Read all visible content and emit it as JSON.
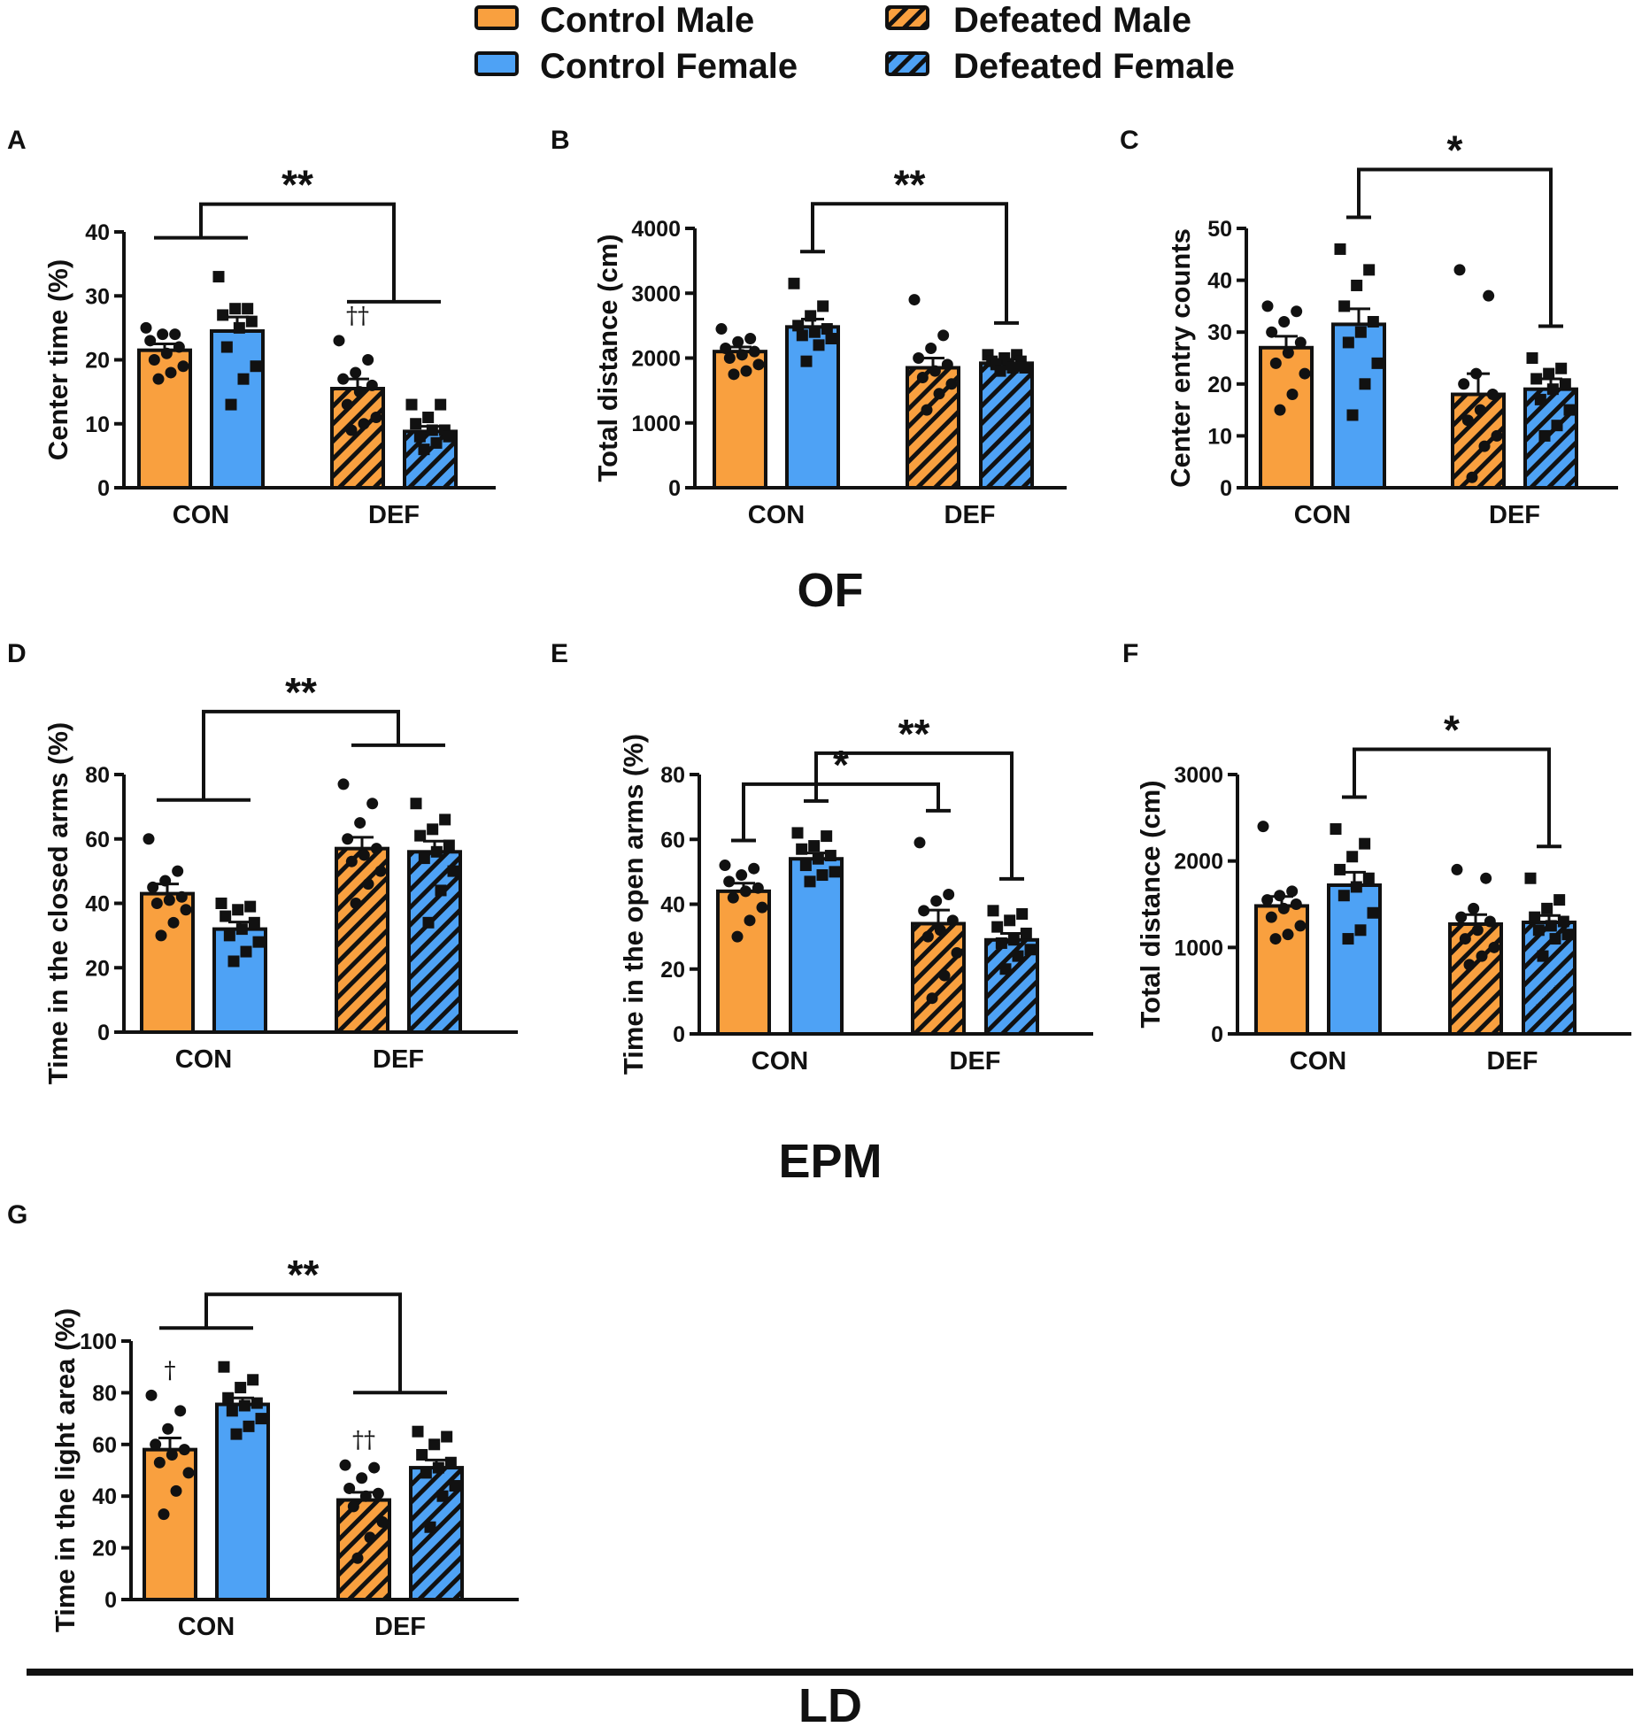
{
  "colors": {
    "control_male": "#F9A03F",
    "control_female": "#4EA2F5",
    "outline": "#111111",
    "background": "#ffffff"
  },
  "legend": {
    "control_male": "Control Male",
    "control_female": "Control Female",
    "defeated_male": "Defeated Male",
    "defeated_female": "Defeated Female"
  },
  "sections": {
    "of": "OF",
    "epm": "EPM",
    "ld": "LD"
  },
  "chart_data": [
    {
      "type": "bar",
      "panel": "A",
      "section": "OF",
      "title": "",
      "xlabel": "",
      "ylabel": "Center time (%)",
      "ylim": [
        0,
        40
      ],
      "yticks": [
        0,
        10,
        20,
        30,
        40
      ],
      "categories": [
        "CON",
        "DEF"
      ],
      "series": [
        {
          "name": "Control Male",
          "group": "CON",
          "mean": 21.5,
          "sem": 1.0,
          "points": [
            25,
            24,
            24,
            23,
            22,
            21,
            20,
            19,
            18,
            17
          ],
          "marker": "circle"
        },
        {
          "name": "Control Female",
          "group": "CON",
          "mean": 24.5,
          "sem": 2.2,
          "points": [
            33,
            28,
            28,
            27,
            26,
            25,
            22,
            19,
            17,
            13
          ],
          "marker": "square"
        },
        {
          "name": "Defeated Male",
          "group": "DEF",
          "mean": 15.5,
          "sem": 1.5,
          "points": [
            23,
            20,
            18,
            17,
            16,
            15,
            13,
            11,
            10,
            9
          ],
          "marker": "circle",
          "dagger": "††"
        },
        {
          "name": "Defeated Female",
          "group": "DEF",
          "mean": 8.8,
          "sem": 0.8,
          "points": [
            13,
            13,
            11,
            10,
            9,
            9,
            8,
            8,
            7,
            6
          ],
          "marker": "square"
        }
      ],
      "significance": [
        {
          "label": "**",
          "comparison": "CON vs DEF"
        }
      ]
    },
    {
      "type": "bar",
      "panel": "B",
      "section": "OF",
      "title": "",
      "xlabel": "",
      "ylabel": "Total distance (cm)",
      "ylim": [
        0,
        4000
      ],
      "yticks": [
        0,
        1000,
        2000,
        3000,
        4000
      ],
      "categories": [
        "CON",
        "DEF"
      ],
      "series": [
        {
          "name": "Control Male",
          "group": "CON",
          "mean": 2100,
          "sem": 70,
          "points": [
            2450,
            2300,
            2250,
            2150,
            2100,
            2050,
            2000,
            1900,
            1800,
            1750
          ],
          "marker": "circle"
        },
        {
          "name": "Control Female",
          "group": "CON",
          "mean": 2480,
          "sem": 120,
          "points": [
            3150,
            2800,
            2650,
            2500,
            2450,
            2400,
            2350,
            2300,
            2200,
            1950
          ],
          "marker": "square"
        },
        {
          "name": "Defeated Male",
          "group": "DEF",
          "mean": 1850,
          "sem": 150,
          "points": [
            2900,
            2350,
            2150,
            2000,
            1900,
            1800,
            1700,
            1600,
            1450,
            1200
          ],
          "marker": "circle"
        },
        {
          "name": "Defeated Female",
          "group": "DEF",
          "mean": 1920,
          "sem": 60,
          "points": [
            2050,
            2050,
            2000,
            1950,
            1950,
            1900,
            1900,
            1850,
            1850,
            1800
          ],
          "marker": "square"
        }
      ],
      "significance": [
        {
          "label": "**",
          "comparison": "Control Female vs Defeated Female"
        }
      ]
    },
    {
      "type": "bar",
      "panel": "C",
      "section": "OF",
      "title": "",
      "xlabel": "",
      "ylabel": "Center entry counts",
      "ylim": [
        0,
        50
      ],
      "yticks": [
        0,
        10,
        20,
        30,
        40,
        50
      ],
      "categories": [
        "CON",
        "DEF"
      ],
      "series": [
        {
          "name": "Control Male",
          "group": "CON",
          "mean": 27,
          "sem": 2.2,
          "points": [
            35,
            34,
            32,
            30,
            28,
            26,
            24,
            22,
            18,
            15
          ],
          "marker": "circle"
        },
        {
          "name": "Control Female",
          "group": "CON",
          "mean": 31.5,
          "sem": 3.0,
          "points": [
            46,
            42,
            39,
            35,
            32,
            30,
            28,
            24,
            20,
            14
          ],
          "marker": "square"
        },
        {
          "name": "Defeated Male",
          "group": "DEF",
          "mean": 18,
          "sem": 4.0,
          "points": [
            42,
            37,
            22,
            20,
            18,
            15,
            13,
            10,
            8,
            2
          ],
          "marker": "circle"
        },
        {
          "name": "Defeated Female",
          "group": "DEF",
          "mean": 19,
          "sem": 2.0,
          "points": [
            25,
            23,
            22,
            21,
            20,
            19,
            17,
            15,
            12,
            10
          ],
          "marker": "square"
        }
      ],
      "significance": [
        {
          "label": "*",
          "comparison": "Control Female vs Defeated Female"
        }
      ]
    },
    {
      "type": "bar",
      "panel": "D",
      "section": "EPM",
      "title": "",
      "xlabel": "",
      "ylabel": "Time in the closed arms (%)",
      "ylim": [
        0,
        80
      ],
      "yticks": [
        0,
        20,
        40,
        60,
        80
      ],
      "categories": [
        "CON",
        "DEF"
      ],
      "series": [
        {
          "name": "Control Male",
          "group": "CON",
          "mean": 43,
          "sem": 3.0,
          "points": [
            60,
            50,
            47,
            45,
            42,
            41,
            40,
            38,
            34,
            30
          ],
          "marker": "circle"
        },
        {
          "name": "Control Female",
          "group": "CON",
          "mean": 32,
          "sem": 2.2,
          "points": [
            40,
            39,
            38,
            36,
            34,
            32,
            30,
            28,
            25,
            22
          ],
          "marker": "square"
        },
        {
          "name": "Defeated Male",
          "group": "DEF",
          "mean": 57,
          "sem": 3.5,
          "points": [
            77,
            71,
            65,
            60,
            57,
            55,
            53,
            50,
            46,
            40
          ],
          "marker": "circle"
        },
        {
          "name": "Defeated Female",
          "group": "DEF",
          "mean": 56,
          "sem": 3.3,
          "points": [
            71,
            66,
            63,
            61,
            58,
            56,
            54,
            50,
            44,
            34
          ],
          "marker": "square"
        }
      ],
      "significance": [
        {
          "label": "**",
          "comparison": "CON vs DEF"
        }
      ]
    },
    {
      "type": "bar",
      "panel": "E",
      "section": "EPM",
      "title": "",
      "xlabel": "",
      "ylabel": "Time in the open arms (%)",
      "ylim": [
        0,
        80
      ],
      "yticks": [
        0,
        20,
        40,
        60,
        80
      ],
      "categories": [
        "CON",
        "DEF"
      ],
      "series": [
        {
          "name": "Control Male",
          "group": "CON",
          "mean": 44,
          "sem": 2.5,
          "points": [
            52,
            51,
            49,
            47,
            45,
            44,
            42,
            39,
            35,
            30
          ],
          "marker": "circle"
        },
        {
          "name": "Control Female",
          "group": "CON",
          "mean": 54,
          "sem": 1.8,
          "points": [
            62,
            61,
            58,
            57,
            55,
            54,
            52,
            50,
            49,
            47
          ],
          "marker": "square"
        },
        {
          "name": "Defeated Male",
          "group": "DEF",
          "mean": 34,
          "sem": 4.2,
          "points": [
            59,
            43,
            41,
            38,
            35,
            32,
            30,
            25,
            18,
            11
          ],
          "marker": "circle"
        },
        {
          "name": "Defeated Female",
          "group": "DEF",
          "mean": 29,
          "sem": 2.0,
          "points": [
            38,
            37,
            35,
            33,
            31,
            29,
            28,
            26,
            24,
            20
          ],
          "marker": "square"
        }
      ],
      "significance": [
        {
          "label": "**",
          "comparison": "Control Female vs Defeated Female"
        },
        {
          "label": "*",
          "comparison": "Control Male vs Defeated Male"
        }
      ]
    },
    {
      "type": "bar",
      "panel": "F",
      "section": "EPM",
      "title": "",
      "xlabel": "",
      "ylabel": "Total distance (cm)",
      "ylim": [
        0,
        3000
      ],
      "yticks": [
        0,
        1000,
        2000,
        3000
      ],
      "categories": [
        "CON",
        "DEF"
      ],
      "series": [
        {
          "name": "Control Male",
          "group": "CON",
          "mean": 1480,
          "sem": 110,
          "points": [
            2400,
            1650,
            1600,
            1550,
            1500,
            1450,
            1350,
            1250,
            1150,
            1100
          ],
          "marker": "circle"
        },
        {
          "name": "Control Female",
          "group": "CON",
          "mean": 1720,
          "sem": 150,
          "points": [
            2370,
            2200,
            2050,
            1900,
            1800,
            1700,
            1600,
            1400,
            1200,
            1100
          ],
          "marker": "square"
        },
        {
          "name": "Defeated Male",
          "group": "DEF",
          "mean": 1270,
          "sem": 110,
          "points": [
            1900,
            1800,
            1450,
            1350,
            1300,
            1200,
            1100,
            1000,
            900,
            800
          ],
          "marker": "circle"
        },
        {
          "name": "Defeated Female",
          "group": "DEF",
          "mean": 1290,
          "sem": 80,
          "points": [
            1800,
            1550,
            1450,
            1350,
            1300,
            1250,
            1200,
            1150,
            1100,
            900
          ],
          "marker": "square"
        }
      ],
      "significance": [
        {
          "label": "*",
          "comparison": "Control Female vs Defeated Female"
        }
      ]
    },
    {
      "type": "bar",
      "panel": "G",
      "section": "LD",
      "title": "",
      "xlabel": "",
      "ylabel": "Time in the light area (%)",
      "ylim": [
        0,
        100
      ],
      "yticks": [
        0,
        20,
        40,
        60,
        80,
        100
      ],
      "categories": [
        "CON",
        "DEF"
      ],
      "series": [
        {
          "name": "Control Male",
          "group": "CON",
          "mean": 58,
          "sem": 4.5,
          "points": [
            79,
            73,
            66,
            60,
            58,
            56,
            53,
            49,
            42,
            33
          ],
          "marker": "circle",
          "dagger": "†"
        },
        {
          "name": "Control Female",
          "group": "CON",
          "mean": 75.5,
          "sem": 2.5,
          "points": [
            90,
            85,
            82,
            78,
            76,
            75,
            73,
            70,
            67,
            64
          ],
          "marker": "square"
        },
        {
          "name": "Defeated Male",
          "group": "DEF",
          "mean": 38.5,
          "sem": 3.0,
          "points": [
            52,
            51,
            47,
            43,
            41,
            40,
            36,
            30,
            24,
            16
          ],
          "marker": "circle",
          "dagger": "††"
        },
        {
          "name": "Defeated Female",
          "group": "DEF",
          "mean": 51,
          "sem": 3.0,
          "points": [
            65,
            63,
            60,
            56,
            53,
            51,
            49,
            44,
            40,
            28
          ],
          "marker": "square"
        }
      ],
      "significance": [
        {
          "label": "**",
          "comparison": "CON vs DEF"
        }
      ]
    }
  ]
}
